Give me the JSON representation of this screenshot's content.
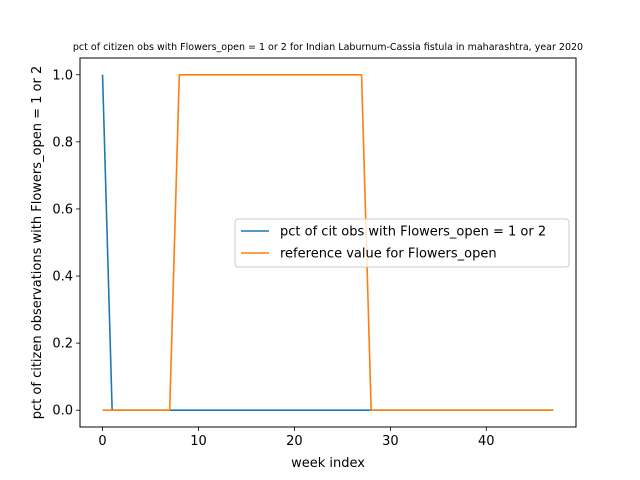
{
  "chart_data": {
    "type": "line",
    "title": "pct of citizen obs with Flowers_open = 1 or 2 for Indian Laburnum-Cassia fistula in maharashtra, year 2020",
    "xlabel": "week index",
    "ylabel": "pct of citizen observations with Flowers_open = 1 or 2",
    "xlim": [
      -2.35,
      49.35
    ],
    "ylim": [
      -0.05,
      1.05
    ],
    "xticks": [
      0,
      10,
      20,
      30,
      40
    ],
    "yticks": [
      0.0,
      0.2,
      0.4,
      0.6,
      0.8,
      1.0
    ],
    "grid": false,
    "legend_position": "center-right",
    "series": [
      {
        "name": "pct of cit obs with Flowers_open = 1 or 2",
        "color": "#1f77b4",
        "x": [
          0,
          1,
          2,
          3,
          4,
          5,
          6,
          7,
          8,
          9,
          10,
          11,
          12,
          13,
          14,
          15,
          16,
          17,
          18,
          19,
          20,
          21,
          22,
          23,
          24,
          25,
          26,
          27,
          28,
          29,
          30,
          31,
          32,
          33,
          34,
          35,
          36,
          37,
          38,
          39,
          40,
          41,
          42,
          43,
          44,
          45,
          46,
          47
        ],
        "y": [
          1,
          0,
          0,
          0,
          0,
          0,
          0,
          0,
          0,
          0,
          0,
          0,
          0,
          0,
          0,
          0,
          0,
          0,
          0,
          0,
          0,
          0,
          0,
          0,
          0,
          0,
          0,
          0,
          0,
          0,
          0,
          0,
          0,
          0,
          0,
          0,
          0,
          0,
          0,
          0,
          0,
          0,
          0,
          0,
          0,
          0,
          0,
          0
        ]
      },
      {
        "name": "reference value for Flowers_open",
        "color": "#ff7f0e",
        "x": [
          0,
          1,
          2,
          3,
          4,
          5,
          6,
          7,
          8,
          9,
          10,
          11,
          12,
          13,
          14,
          15,
          16,
          17,
          18,
          19,
          20,
          21,
          22,
          23,
          24,
          25,
          26,
          27,
          28,
          29,
          30,
          31,
          32,
          33,
          34,
          35,
          36,
          37,
          38,
          39,
          40,
          41,
          42,
          43,
          44,
          45,
          46,
          47
        ],
        "y": [
          0,
          0,
          0,
          0,
          0,
          0,
          0,
          0,
          1,
          1,
          1,
          1,
          1,
          1,
          1,
          1,
          1,
          1,
          1,
          1,
          1,
          1,
          1,
          1,
          1,
          1,
          1,
          1,
          0,
          0,
          0,
          0,
          0,
          0,
          0,
          0,
          0,
          0,
          0,
          0,
          0,
          0,
          0,
          0,
          0,
          0,
          0,
          0
        ]
      }
    ]
  }
}
